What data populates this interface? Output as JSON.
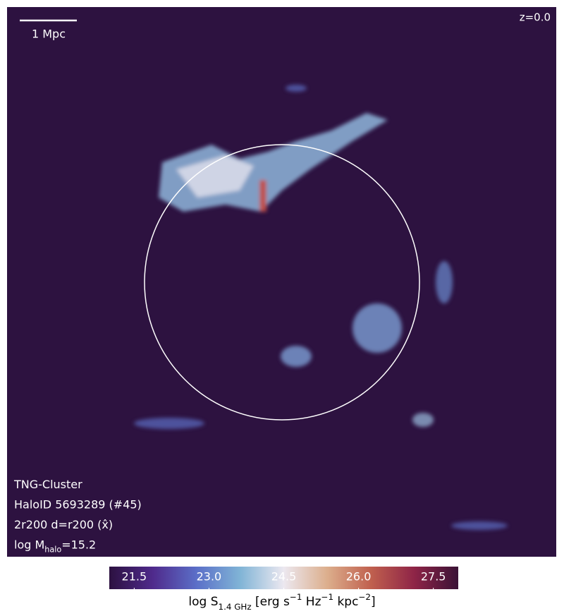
{
  "chart_data": {
    "type": "map",
    "scale_bar": "1 Mpc",
    "redshift": "z=0.0",
    "annotations": [
      [
        {
          "text": "TNG-Cluster"
        }
      ],
      [
        {
          "text": "HaloID 5693289 (#45)"
        }
      ],
      [
        {
          "text": "2r200 d=r200 (x̂)"
        }
      ],
      [
        {
          "text": "log M"
        },
        {
          "sub": "halo"
        },
        {
          "text": "=15.2"
        }
      ]
    ],
    "colorbar": {
      "label": [
        {
          "text": "log S"
        },
        {
          "sub": "1.4 GHz"
        },
        {
          "text": " [erg s"
        },
        {
          "sup": "−1"
        },
        {
          "text": " Hz"
        },
        {
          "sup": "−1"
        },
        {
          "text": " kpc"
        },
        {
          "sup": "−2"
        },
        {
          "text": "]"
        }
      ],
      "clim": [
        21,
        28
      ],
      "ticks": [
        {
          "value": 21.5,
          "label": "21.5"
        },
        {
          "value": 23,
          "label": "23.0"
        },
        {
          "value": 24.5,
          "label": "24.5"
        },
        {
          "value": 26,
          "label": "26.0"
        },
        {
          "value": 27.5,
          "label": "27.5"
        }
      ],
      "colors": [
        "#2c1140",
        "#4f2a8c",
        "#5b6fc8",
        "#80b4d6",
        "#ece8f0",
        "#dcae8c",
        "#c0604e",
        "#8e2447",
        "#3a1236"
      ]
    }
  }
}
